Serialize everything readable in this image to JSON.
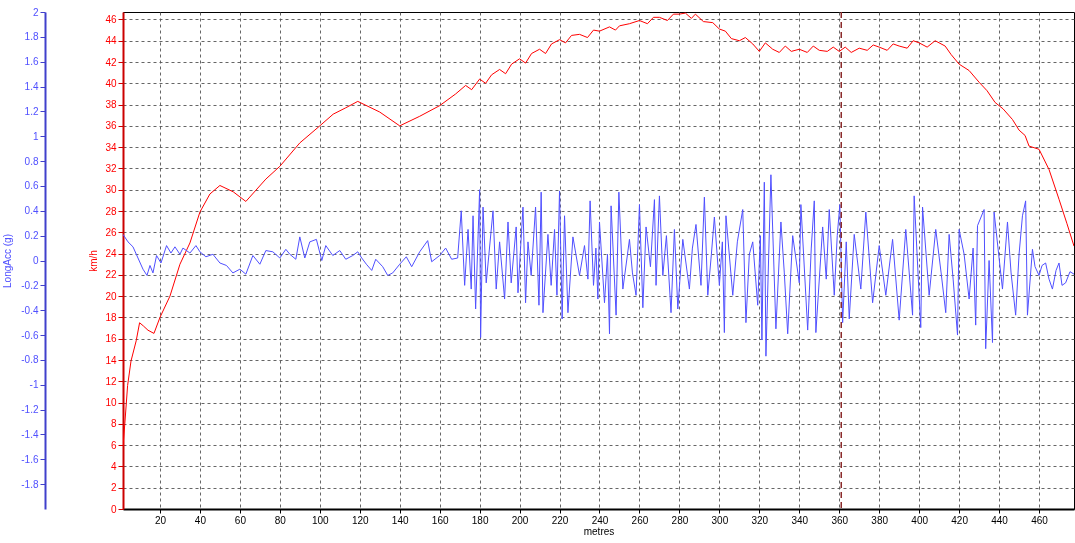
{
  "chart_data": {
    "type": "line",
    "xlabel": "metres",
    "ylabel": "km/h",
    "y2label": "LongAcc (g)",
    "xlim": [
      1.5,
      477.5
    ],
    "xticks": [
      20,
      40,
      60,
      80,
      100,
      120,
      140,
      160,
      180,
      200,
      220,
      240,
      260,
      280,
      300,
      320,
      340,
      360,
      380,
      400,
      420,
      440,
      460
    ],
    "ylim": [
      0,
      46.7
    ],
    "yticks": [
      0,
      2,
      4,
      6,
      8,
      10,
      12,
      14,
      16,
      18,
      20,
      22,
      24,
      26,
      28,
      30,
      32,
      34,
      36,
      38,
      40,
      42,
      44,
      46
    ],
    "y2lim": [
      -2,
      2
    ],
    "y2ticks": [
      -1.8,
      -1.6,
      -1.4,
      -1.2,
      -1,
      -0.8,
      -0.6,
      -0.4,
      -0.2,
      0,
      0.2,
      0.4,
      0.6,
      0.8,
      1,
      1.2,
      1.4,
      1.6,
      1.8,
      2
    ],
    "grid": true,
    "series": [
      {
        "color": "#ff0000",
        "x": [
          1.5,
          2.4,
          3.8,
          5.5,
          8.1,
          9.8,
          11.7,
          14,
          17,
          20,
          25,
          30,
          35,
          40,
          45,
          50,
          56.7,
          63,
          73,
          80,
          90,
          100,
          106.7,
          113,
          119,
          130,
          140,
          150,
          160,
          168,
          173,
          176,
          180,
          183,
          186,
          190,
          193,
          196,
          200,
          203,
          206,
          210,
          213,
          216,
          220,
          223,
          226,
          230,
          234,
          237,
          240,
          245,
          248,
          250,
          255,
          260,
          264,
          267,
          270,
          274,
          277,
          280,
          283,
          286,
          288,
          292,
          296.7,
          300,
          303,
          306,
          310,
          313,
          316.7,
          320,
          323,
          326.7,
          330,
          333,
          336,
          340,
          344,
          347,
          350,
          354,
          357,
          360,
          363,
          366,
          370,
          374,
          377,
          380,
          384,
          387,
          390,
          394,
          397,
          400,
          404,
          408,
          413,
          416,
          420,
          425,
          430,
          434,
          438,
          442,
          446.7,
          450,
          453,
          455,
          460,
          465,
          470,
          474,
          477.5
        ],
        "values": [
          5.9,
          8.0,
          11.6,
          13.9,
          15.8,
          17.5,
          17.2,
          16.8,
          16.5,
          18,
          20,
          23,
          25,
          27.9,
          29.6,
          30.4,
          29.8,
          28.9,
          31,
          32.2,
          34.4,
          36.0,
          37.1,
          37.7,
          38.3,
          37.3,
          36.0,
          36.9,
          37.9,
          39.0,
          39.8,
          39.4,
          40.4,
          40.0,
          40.8,
          41.3,
          40.9,
          41.8,
          42.3,
          41.9,
          42.8,
          43.2,
          42.8,
          43.7,
          44.1,
          43.8,
          44.5,
          44.6,
          44.3,
          45.0,
          44.9,
          45.3,
          45.0,
          45.4,
          45.6,
          45.9,
          45.6,
          46.2,
          46.2,
          45.9,
          46.5,
          46.5,
          46.6,
          46.1,
          46.5,
          45.8,
          45.7,
          45.1,
          44.9,
          44.2,
          44.0,
          44.3,
          43.7,
          43.0,
          43.8,
          43.2,
          42.9,
          43.5,
          43.0,
          43.2,
          42.9,
          43.5,
          43.1,
          43.0,
          43.4,
          43.0,
          43.4,
          42.9,
          43.3,
          43.1,
          43.6,
          43.4,
          43.1,
          43.7,
          43.5,
          43.3,
          44.0,
          43.8,
          43.4,
          44.0,
          43.5,
          42.7,
          41.8,
          41.2,
          40.1,
          39.3,
          38.2,
          37.6,
          36.6,
          35.6,
          35.1,
          34.1,
          33.8,
          31.9,
          29.1,
          26.8,
          24.7
        ]
      },
      {
        "color": "#5050ff",
        "axis": "y2",
        "x": [
          1.5,
          4,
          6.5,
          9,
          11.5,
          13.5,
          15,
          16.5,
          18.3,
          20.5,
          23.3,
          25.5,
          27.5,
          30,
          31.5,
          35,
          38,
          40,
          43,
          46.5,
          50,
          53.3,
          56.5,
          60,
          63,
          66.5,
          70,
          73,
          76.5,
          80,
          83,
          85,
          88,
          90,
          92.5,
          95,
          98.3,
          101,
          103,
          106.5,
          110,
          113,
          116.5,
          119,
          121,
          123.3,
          126,
          128,
          131.5,
          134,
          136.5,
          140,
          143.3,
          146,
          150,
          154,
          156,
          160,
          163,
          166,
          169,
          170.8,
          172.5,
          174.2,
          175.8,
          176.7,
          178,
          180,
          180.5,
          181.7,
          183.3,
          186.7,
          188.3,
          190,
          192.5,
          194.2,
          195.8,
          198.3,
          199.2,
          201.7,
          203,
          204.2,
          205.8,
          208,
          209.7,
          210.8,
          211.7,
          214.2,
          215.8,
          217.5,
          218.7,
          220,
          221.3,
          222.5,
          224.2,
          226.7,
          230,
          232.5,
          234.2,
          235.3,
          237,
          238.2,
          239.2,
          240,
          242.5,
          244,
          245,
          245.8,
          248.3,
          249.7,
          251.7,
          255,
          256.5,
          258.3,
          260,
          261.7,
          263.3,
          265.5,
          267.5,
          268.3,
          270,
          271.7,
          273.5,
          275.8,
          277.5,
          279.2,
          281.7,
          285,
          286.5,
          288.3,
          290.8,
          292.5,
          294.2,
          296,
          297.5,
          300,
          301.5,
          302.5,
          303.3,
          306.7,
          309,
          311.7,
          313.3,
          315,
          316.7,
          319.2,
          320.5,
          321.3,
          322.5,
          323.3,
          325.8,
          328.3,
          330.8,
          332.5,
          334.2,
          336.7,
          340,
          340.8,
          344.2,
          346,
          347.5,
          348.3,
          351.7,
          353.5,
          355,
          357.5,
          359,
          360.3,
          361.7,
          363.5,
          365,
          367.5,
          370.8,
          373.3,
          376.7,
          380,
          383.3,
          386.7,
          390,
          393.3,
          396.7,
          397.5,
          400.8,
          401.7,
          405,
          408.3,
          411,
          413.3,
          415,
          417,
          419.2,
          420,
          422.5,
          425,
          427,
          428.3,
          429.2,
          432.5,
          433.3,
          435,
          436.7,
          437.5,
          441.7,
          444.2,
          446,
          448.3,
          450,
          451.7,
          453.3,
          454.2,
          456.7,
          458,
          460,
          461.5,
          463.3,
          465,
          466.7,
          468.5,
          470,
          471.5,
          473.3,
          475.5,
          477.5
        ],
        "values": [
          0.21,
          0.15,
          0.11,
          0.02,
          -0.07,
          -0.12,
          -0.04,
          -0.1,
          0.04,
          -0.02,
          0.12,
          0.06,
          0.11,
          0.05,
          0.1,
          0.06,
          0.12,
          0.07,
          0.03,
          0.05,
          -0.02,
          -0.04,
          -0.1,
          -0.07,
          -0.11,
          0.04,
          -0.03,
          0.08,
          0.07,
          0.02,
          0.09,
          0.05,
          0.01,
          0.19,
          0.02,
          0.15,
          0.17,
          0.0,
          0.12,
          0.04,
          0.08,
          0.01,
          0.04,
          0.07,
          0.02,
          -0.03,
          -0.08,
          0.01,
          -0.05,
          -0.12,
          -0.1,
          -0.03,
          0.03,
          -0.05,
          0.07,
          0.16,
          -0.01,
          0.04,
          0.1,
          0.01,
          0.02,
          0.4,
          -0.2,
          0.25,
          -0.23,
          0.36,
          -0.39,
          0.57,
          -0.62,
          0.43,
          -0.18,
          0.4,
          -0.23,
          0.15,
          -0.31,
          0.31,
          -0.18,
          0.27,
          -0.26,
          0.43,
          -0.34,
          0.15,
          -0.12,
          0.43,
          -0.36,
          0.55,
          -0.42,
          0.21,
          -0.2,
          0.25,
          -0.28,
          0.56,
          -0.47,
          0.36,
          -0.42,
          0.19,
          -0.12,
          0.12,
          -0.15,
          0.48,
          -0.2,
          0.1,
          -0.31,
          0.31,
          -0.34,
          0.05,
          -0.59,
          0.44,
          -0.44,
          0.55,
          -0.23,
          0.17,
          -0.1,
          -0.28,
          0.45,
          -0.38,
          0.27,
          -0.05,
          0.49,
          -0.2,
          0.52,
          -0.12,
          0.2,
          -0.42,
          0.25,
          -0.39,
          0.17,
          -0.23,
          0.1,
          0.29,
          -0.2,
          0.51,
          -0.28,
          0.05,
          0.35,
          -0.2,
          0.15,
          -0.58,
          0.36,
          -0.28,
          0.15,
          0.41,
          -0.5,
          0.05,
          0.15,
          -0.36,
          0.2,
          -0.64,
          0.63,
          -0.77,
          0.69,
          -0.55,
          0.31,
          -0.1,
          -0.59,
          0.2,
          -0.18,
          0.45,
          -0.56,
          0.1,
          0.48,
          -0.58,
          0.27,
          -0.15,
          0.41,
          -0.28,
          0.2,
          0.45,
          -0.5,
          0.15,
          -0.47,
          0.21,
          -0.23,
          0.39,
          -0.34,
          0.12,
          -0.28,
          0.17,
          -0.48,
          0.25,
          -0.44,
          0.52,
          -0.54,
          0.43,
          -0.28,
          0.25,
          -0.1,
          -0.42,
          0.21,
          -0.15,
          -0.6,
          0.25,
          0.05,
          -0.31,
          0.1,
          -0.52,
          0.28,
          0.41,
          -0.71,
          0.0,
          -0.66,
          0.39,
          -0.23,
          0.31,
          -0.1,
          -0.44,
          0.05,
          0.36,
          0.48,
          -0.44,
          0.09,
          -0.05,
          -0.12,
          -0.04,
          -0.02,
          -0.15,
          -0.23,
          -0.08,
          -0.02,
          -0.2,
          -0.18,
          -0.09,
          -0.11
        ]
      }
    ],
    "ref_lines": [
      {
        "axis": "x",
        "value": 361,
        "color": "#8b2b2b",
        "line_style": "dashed"
      }
    ]
  }
}
